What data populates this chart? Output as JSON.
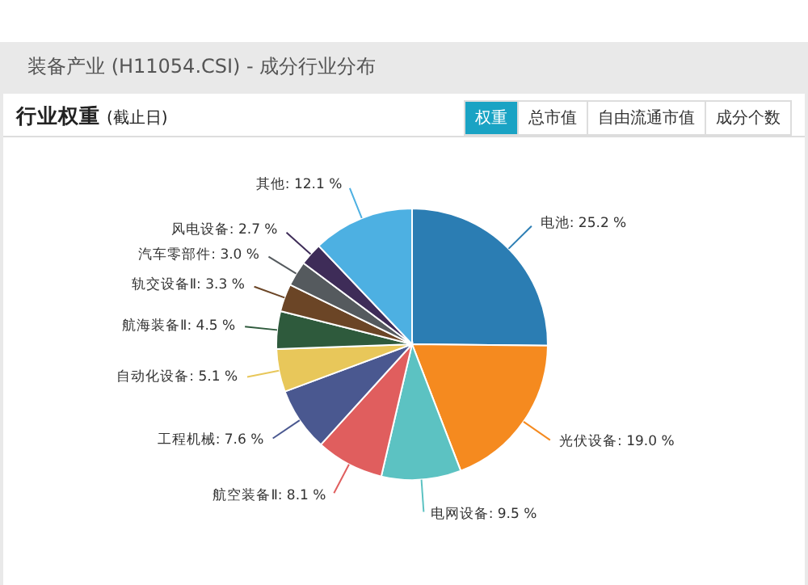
{
  "chart_data": {
    "type": "pie",
    "title": "装备产业 (H11054.CSI) - 成分行业分布",
    "subtitle": "行业权重",
    "annotations": [
      "(截止日)",
      "权重",
      "总市值",
      "自由流通市值",
      "成分个数"
    ],
    "categories": [
      "电池",
      "光伏设备",
      "电网设备",
      "航空装备Ⅱ",
      "工程机械",
      "自动化设备",
      "航海装备Ⅱ",
      "轨交设备Ⅱ",
      "汽车零部件",
      "风电设备",
      "其他"
    ],
    "values": [
      25.2,
      19.0,
      9.5,
      8.1,
      7.6,
      5.1,
      4.5,
      3.3,
      3.0,
      2.7,
      12.1
    ],
    "value_labels": [
      "25.2 %",
      "19.0 %",
      "9.5 %",
      "8.1 %",
      "7.6 %",
      "5.1 %",
      "4.5 %",
      "3.3 %",
      "3.0 %",
      "2.7 %",
      "12.1 %"
    ],
    "colors": [
      "#2b7db3",
      "#f58a1f",
      "#5cc2c2",
      "#e05e5e",
      "#4a5890",
      "#e8c75a",
      "#2e5a3c",
      "#6b4526",
      "#555a5e",
      "#3e2c58",
      "#4db0e2"
    ],
    "legend": false
  }
}
